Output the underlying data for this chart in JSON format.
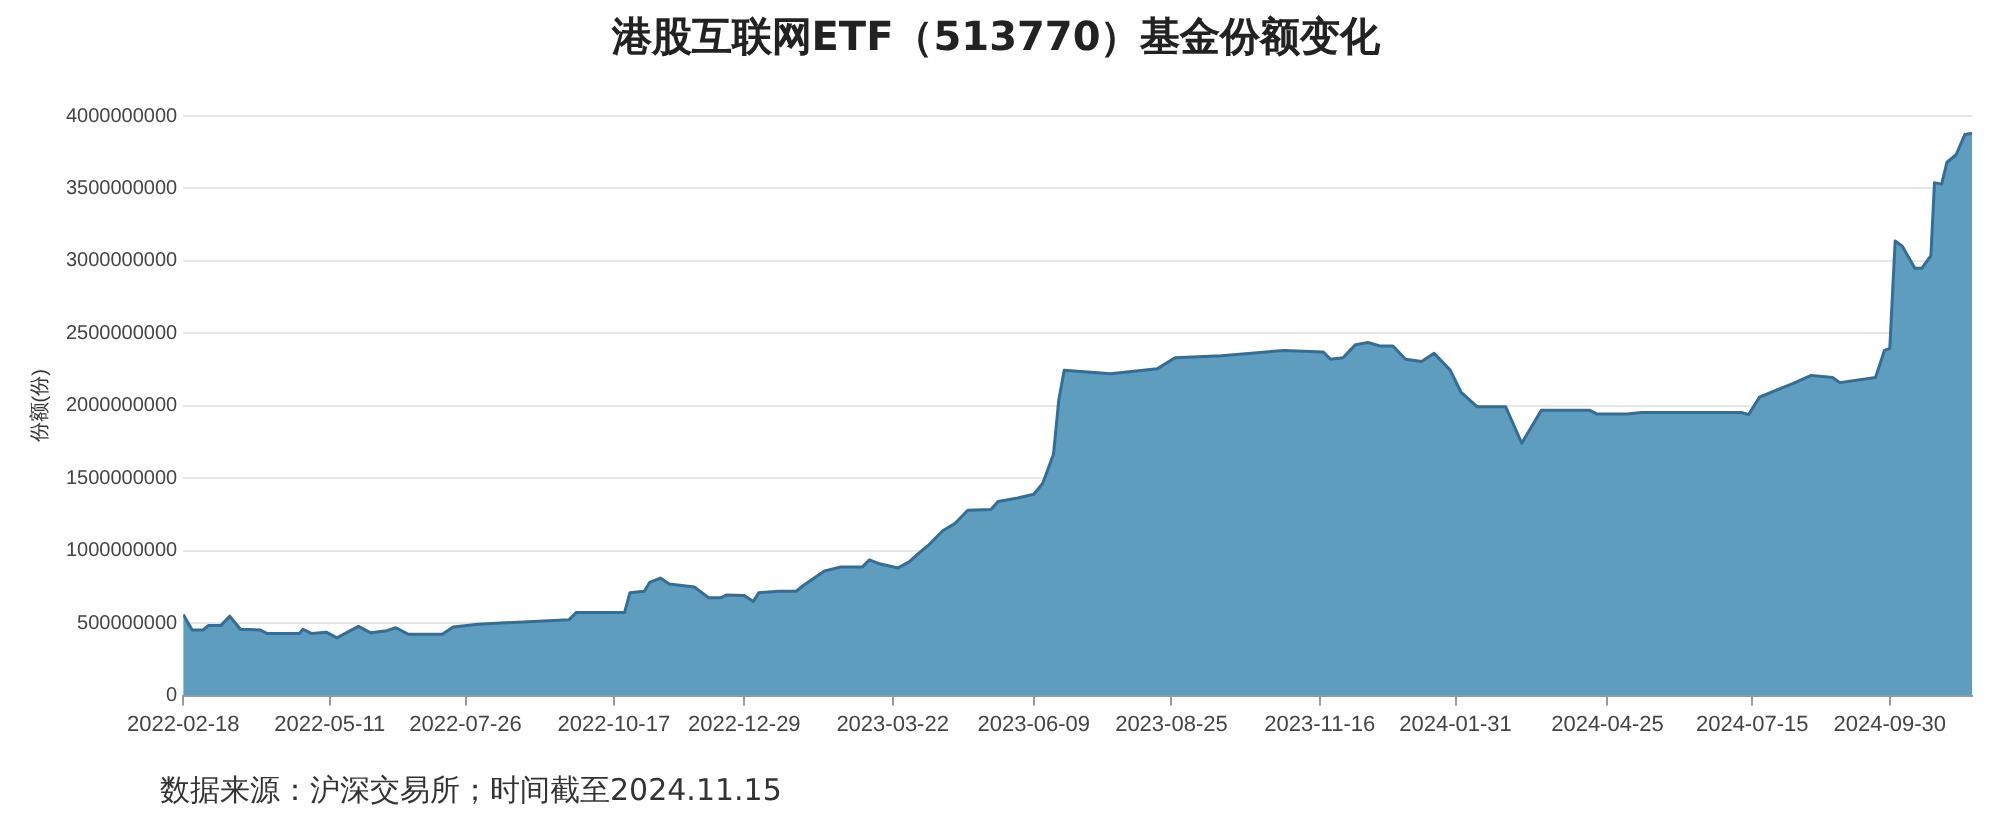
{
  "chart_data": {
    "type": "area",
    "title": "港股互联网ETF（513770）基金份额变化",
    "ylabel": "份额(份)",
    "annotations": [
      "数据来源：沪深交易所；时间截至2024.11.15"
    ],
    "x": [
      "2022-02-18",
      "2022-02-23",
      "2022-03-01",
      "2022-03-04",
      "2022-03-11",
      "2022-03-16",
      "2022-03-22",
      "2022-04-02",
      "2022-04-06",
      "2022-04-24",
      "2022-04-26",
      "2022-05-01",
      "2022-05-09",
      "2022-05-15",
      "2022-05-27",
      "2022-06-03",
      "2022-06-12",
      "2022-06-17",
      "2022-06-24",
      "2022-07-13",
      "2022-07-19",
      "2022-08-02",
      "2022-09-22",
      "2022-09-26",
      "2022-10-23",
      "2022-10-26",
      "2022-11-03",
      "2022-11-06",
      "2022-11-12",
      "2022-11-17",
      "2022-12-01",
      "2022-12-09",
      "2022-12-16",
      "2022-12-19",
      "2022-12-29",
      "2023-01-03",
      "2023-01-06",
      "2023-01-17",
      "2023-01-27",
      "2023-01-31",
      "2023-02-12",
      "2023-02-21",
      "2023-03-05",
      "2023-03-09",
      "2023-03-14",
      "2023-03-25",
      "2023-03-31",
      "2023-04-06",
      "2023-04-11",
      "2023-04-19",
      "2023-04-26",
      "2023-05-03",
      "2023-05-16",
      "2023-05-20",
      "2023-05-31",
      "2023-06-09",
      "2023-06-14",
      "2023-06-20",
      "2023-06-23",
      "2023-06-26",
      "2023-07-22",
      "2023-08-17",
      "2023-08-27",
      "2023-09-22",
      "2023-10-27",
      "2023-11-18",
      "2023-11-22",
      "2023-11-29",
      "2023-12-06",
      "2023-12-13",
      "2023-12-20",
      "2023-12-27",
      "2024-01-03",
      "2024-01-12",
      "2024-01-19",
      "2024-01-28",
      "2024-02-03",
      "2024-02-12",
      "2024-02-28",
      "2024-03-08",
      "2024-03-19",
      "2024-04-15",
      "2024-04-19",
      "2024-05-06",
      "2024-05-14",
      "2024-07-09",
      "2024-07-13",
      "2024-07-19",
      "2024-07-31",
      "2024-08-07",
      "2024-08-17",
      "2024-08-29",
      "2024-09-02",
      "2024-09-22",
      "2024-09-27",
      "2024-09-30",
      "2024-10-03",
      "2024-10-07",
      "2024-10-14",
      "2024-10-18",
      "2024-10-23",
      "2024-10-25",
      "2024-10-29",
      "2024-11-01",
      "2024-11-06",
      "2024-11-11",
      "2024-11-15"
    ],
    "series": [
      {
        "color": "#5f9dbf",
        "values": [
          560000000,
          453000000,
          453000000,
          483000000,
          483000000,
          548000000,
          458000000,
          453000000,
          428000000,
          428000000,
          458000000,
          428000000,
          438000000,
          398000000,
          478000000,
          433000000,
          448000000,
          468000000,
          423000000,
          423000000,
          473000000,
          493000000,
          524000000,
          574000000,
          574000000,
          710000000,
          720000000,
          781000000,
          811000000,
          770000000,
          750000000,
          675000000,
          675000000,
          695000000,
          690000000,
          650000000,
          710000000,
          720000000,
          720000000,
          760000000,
          861000000,
          887000000,
          887000000,
          937000000,
          912000000,
          881000000,
          921000000,
          987000000,
          1038000000,
          1138000000,
          1189000000,
          1279000000,
          1284000000,
          1340000000,
          1364000000,
          1390000000,
          1465000000,
          1666000000,
          2044000000,
          2246000000,
          2221000000,
          2255000000,
          2331000000,
          2346000000,
          2382000000,
          2371000000,
          2321000000,
          2331000000,
          2422000000,
          2437000000,
          2412000000,
          2412000000,
          2321000000,
          2306000000,
          2362000000,
          2246000000,
          2095000000,
          1994000000,
          1994000000,
          1742000000,
          1969000000,
          1969000000,
          1944000000,
          1944000000,
          1954000000,
          1954000000,
          1939000000,
          2059000000,
          2120000000,
          2155000000,
          2210000000,
          2195000000,
          2160000000,
          2195000000,
          2382000000,
          2397000000,
          3137000000,
          3102000000,
          2950000000,
          2950000000,
          3036000000,
          3540000000,
          3530000000,
          3681000000,
          3731000000,
          3872000000,
          3882000000
        ]
      }
    ],
    "xlim": [
      "2022-02-18",
      "2024-11-15"
    ],
    "xticks": [
      "2022-02-18",
      "2022-05-11",
      "2022-07-26",
      "2022-10-17",
      "2022-12-29",
      "2023-03-22",
      "2023-06-09",
      "2023-08-25",
      "2023-11-16",
      "2024-01-31",
      "2024-04-25",
      "2024-07-15",
      "2024-09-30"
    ],
    "ylim": [
      0,
      4000000000
    ],
    "yticks": [
      0,
      500000000,
      1000000000,
      1500000000,
      2000000000,
      2500000000,
      3000000000,
      3500000000,
      4000000000
    ],
    "grid": "y",
    "legend": false
  }
}
